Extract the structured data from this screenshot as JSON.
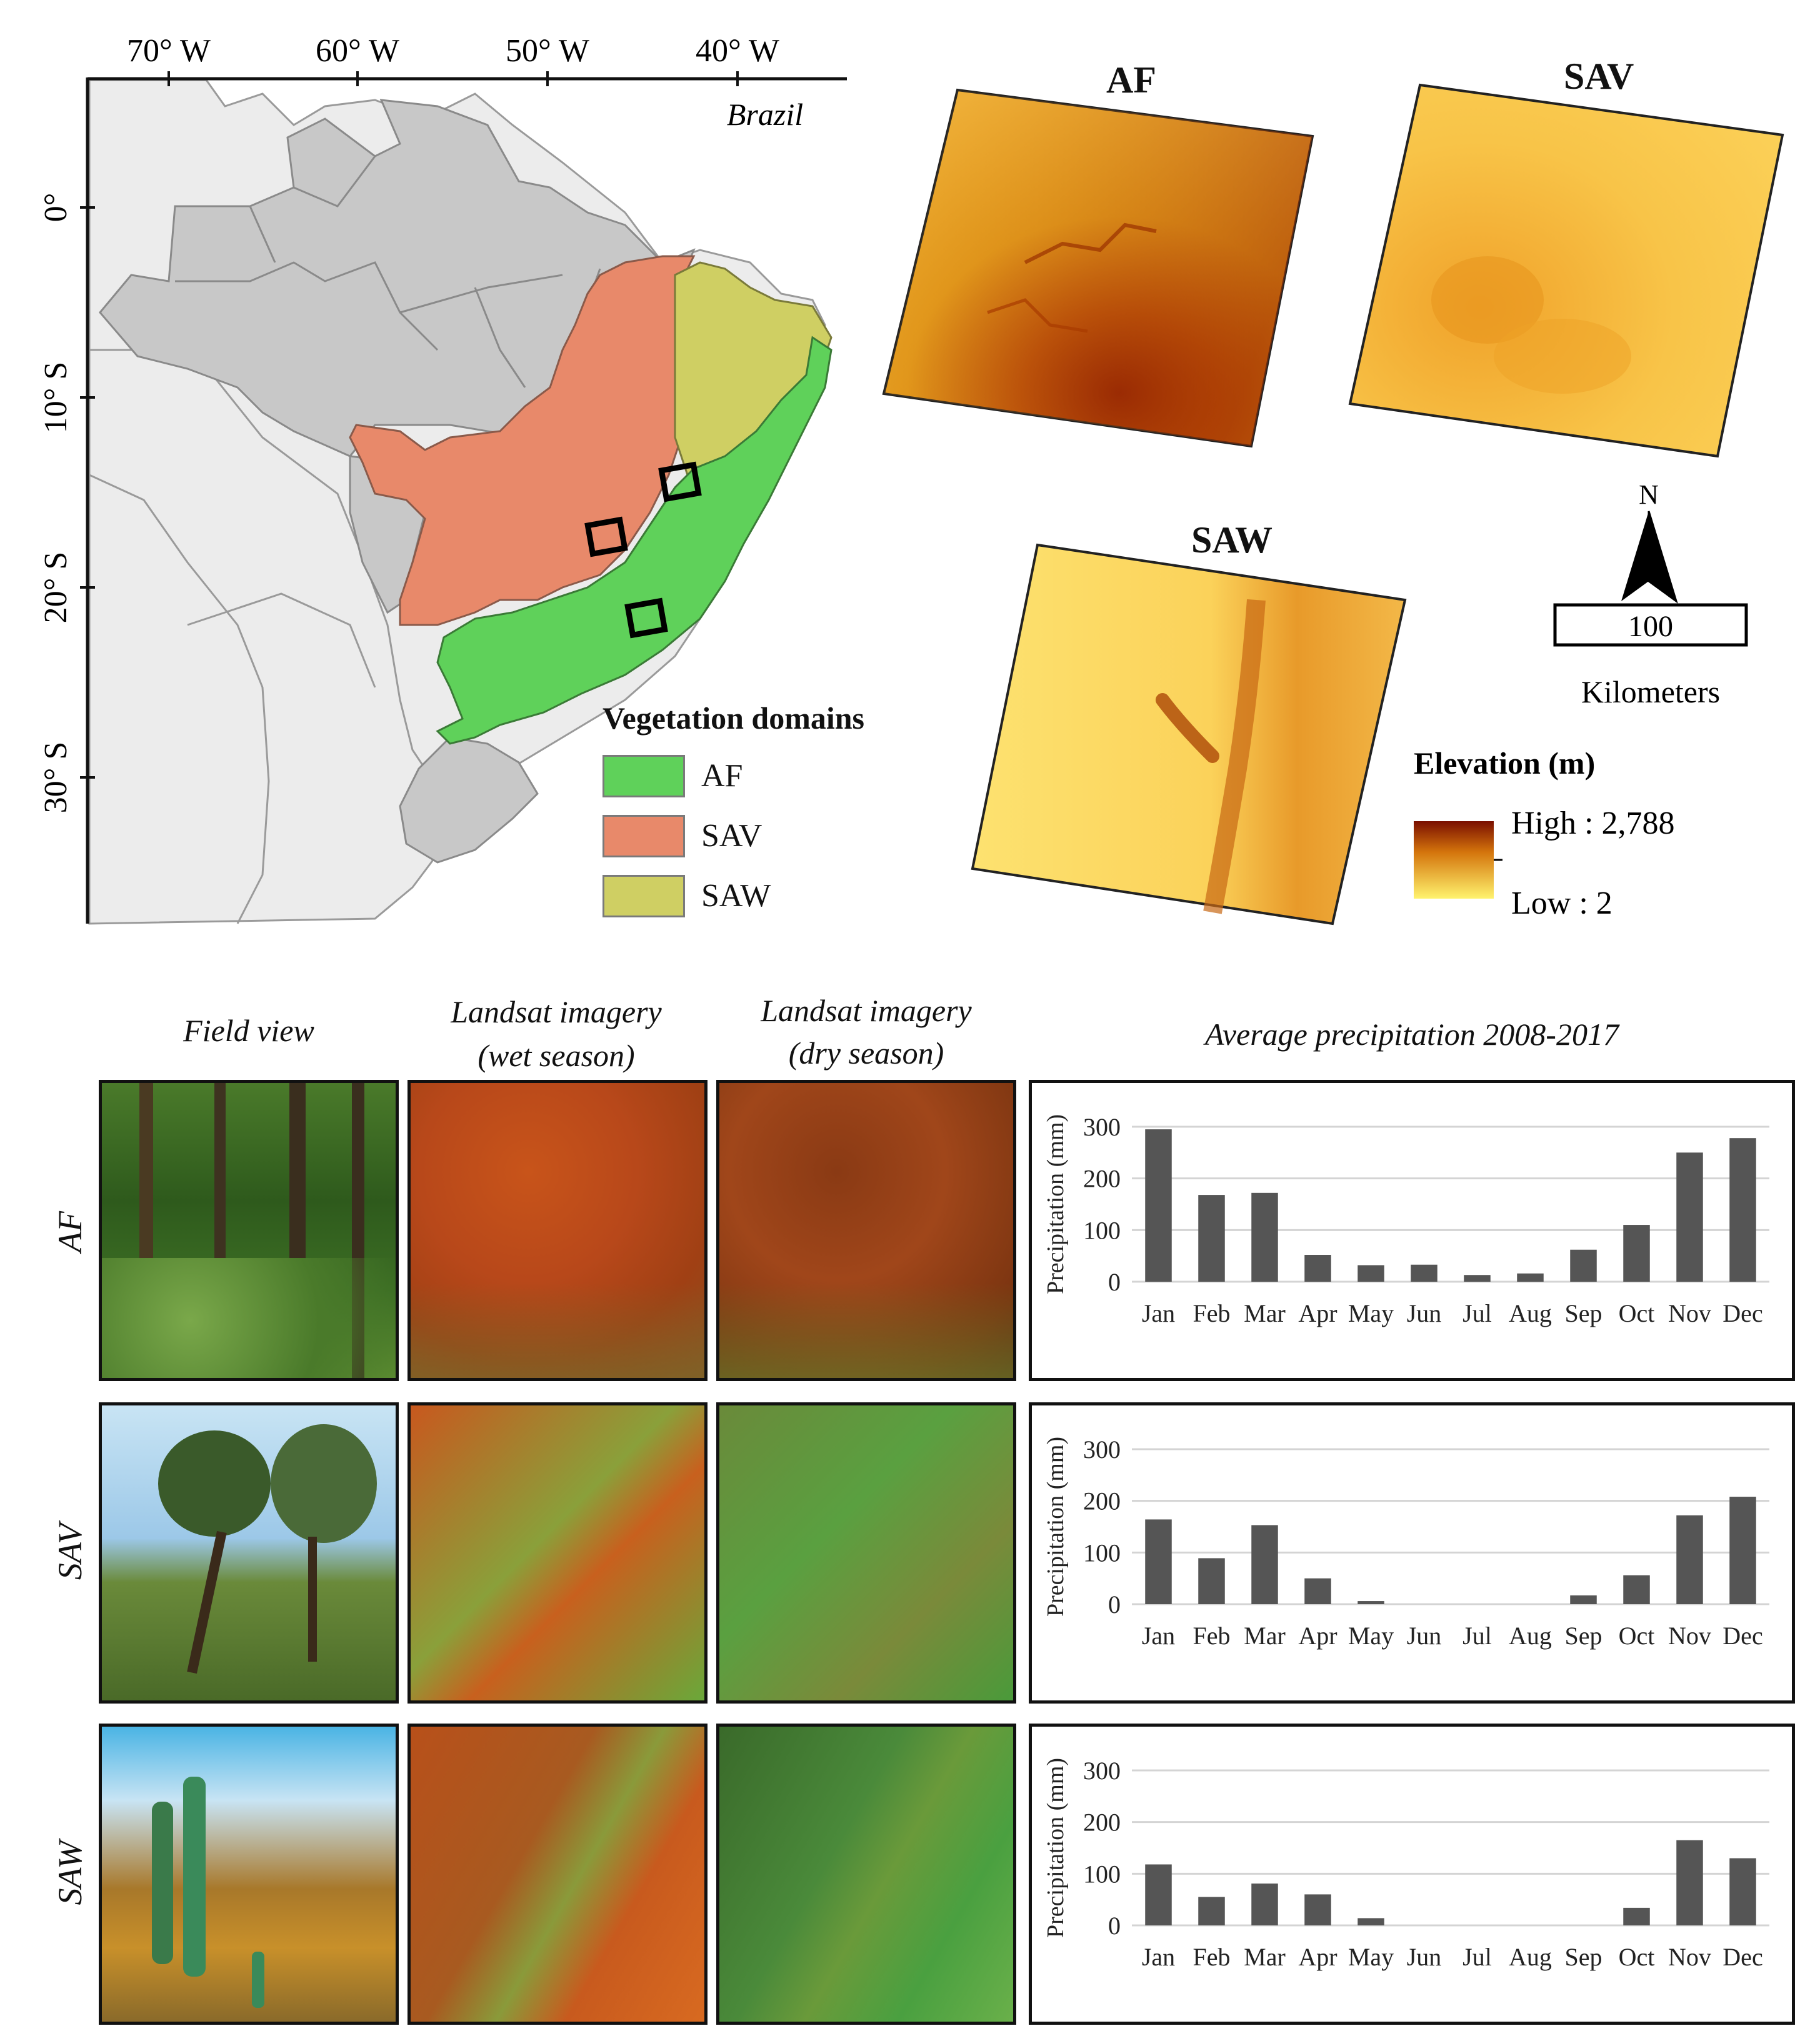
{
  "map": {
    "lon_labels": [
      "70° W",
      "60° W",
      "50° W",
      "40° W"
    ],
    "lat_labels": [
      "0°",
      "10° S",
      "20° S",
      "30° S"
    ],
    "country_label": "Brazil",
    "legend": {
      "title": "Vegetation domains",
      "items": [
        {
          "label": "AF",
          "color": "#5fd15a"
        },
        {
          "label": "SAV",
          "color": "#e8896a"
        },
        {
          "label": "SAW",
          "color": "#cfcf63"
        }
      ]
    }
  },
  "elevation": {
    "panels": [
      {
        "title": "AF"
      },
      {
        "title": "SAV"
      },
      {
        "title": "SAW"
      }
    ],
    "legend_title": "Elevation (m)",
    "high_label": "High : 2,788",
    "low_label": "Low : 2",
    "high_color": "#7a0f00",
    "low_color": "#fff36e"
  },
  "north_arrow": {
    "label": "N"
  },
  "scale_bar": {
    "value": "100",
    "unit": "Kilometers"
  },
  "grid": {
    "column_headers": {
      "field": "Field view",
      "wet_line1": "Landsat imagery",
      "wet_line2": "(wet season)",
      "dry_line1": "Landsat imagery",
      "dry_line2": "(dry season)",
      "precip": "Average precipitation 2008-2017"
    },
    "row_labels": [
      "AF",
      "SAV",
      "SAW"
    ]
  },
  "chart_data": [
    {
      "type": "bar",
      "domain": "AF",
      "categories": [
        "Jan",
        "Feb",
        "Mar",
        "Apr",
        "May",
        "Jun",
        "Jul",
        "Aug",
        "Sep",
        "Oct",
        "Nov",
        "Dec"
      ],
      "values": [
        295,
        168,
        172,
        52,
        32,
        33,
        13,
        16,
        62,
        110,
        250,
        278
      ],
      "ylabel": "Precipitation (mm)",
      "ylim": [
        0,
        300
      ],
      "yticks": [
        0,
        100,
        200,
        300
      ],
      "grid": true,
      "bar_color": "#555555"
    },
    {
      "type": "bar",
      "domain": "SAV",
      "categories": [
        "Jan",
        "Feb",
        "Mar",
        "Apr",
        "May",
        "Jun",
        "Jul",
        "Aug",
        "Sep",
        "Oct",
        "Nov",
        "Dec"
      ],
      "values": [
        164,
        89,
        153,
        50,
        6,
        0,
        0,
        0,
        17,
        56,
        172,
        208
      ],
      "ylabel": "Precipitation (mm)",
      "ylim": [
        0,
        300
      ],
      "yticks": [
        0,
        100,
        200,
        300
      ],
      "grid": true,
      "bar_color": "#555555"
    },
    {
      "type": "bar",
      "domain": "SAW",
      "categories": [
        "Jan",
        "Feb",
        "Mar",
        "Apr",
        "May",
        "Jun",
        "Jul",
        "Aug",
        "Sep",
        "Oct",
        "Nov",
        "Dec"
      ],
      "values": [
        118,
        55,
        81,
        60,
        14,
        0,
        0,
        0,
        0,
        34,
        165,
        130
      ],
      "ylabel": "Precipitation (mm)",
      "ylim": [
        0,
        300
      ],
      "yticks": [
        0,
        100,
        200,
        300
      ],
      "grid": true,
      "bar_color": "#555555"
    }
  ]
}
